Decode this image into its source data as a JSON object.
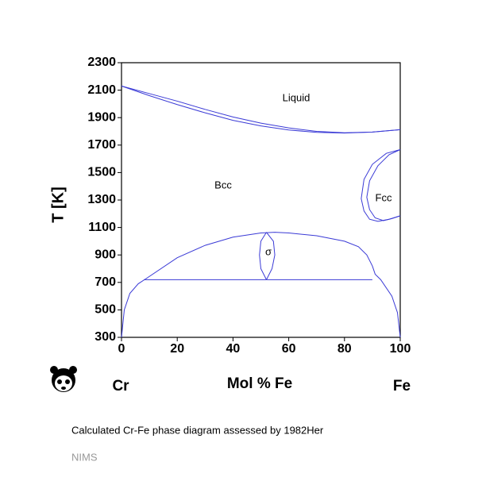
{
  "chart_data": {
    "type": "line",
    "xlabel": "Mol % Fe",
    "ylabel": "T [K]",
    "left_element": "Cr",
    "right_element": "Fe",
    "caption": "Calculated Cr-Fe phase diagram assessed by 1982Her",
    "source": "NIMS",
    "annotations": [
      "Liquid",
      "Bcc",
      "Fcc",
      "σ"
    ],
    "xlim": [
      0,
      100
    ],
    "xticks": [
      0,
      20,
      40,
      60,
      80,
      100
    ],
    "ylim": [
      300,
      2300
    ],
    "yticks": [
      300,
      500,
      700,
      900,
      1100,
      1300,
      1500,
      1700,
      1900,
      2100,
      2300
    ],
    "color": "#3a3ad6",
    "series": [
      {
        "x": [
          0,
          10,
          20,
          30,
          40,
          50,
          60,
          70,
          80,
          90,
          100
        ],
        "values": [
          2130,
          2075,
          2020,
          1960,
          1905,
          1860,
          1825,
          1800,
          1790,
          1795,
          1812
        ]
      },
      {
        "x": [
          0,
          10,
          20,
          30,
          40,
          50,
          60,
          70,
          80,
          90,
          100
        ],
        "values": [
          2130,
          2060,
          1995,
          1935,
          1880,
          1840,
          1810,
          1793,
          1788,
          1795,
          1812
        ]
      },
      {
        "x": [
          100,
          95,
          90,
          87,
          86,
          87,
          89,
          92,
          96,
          100
        ],
        "values": [
          1667,
          1640,
          1560,
          1450,
          1310,
          1220,
          1160,
          1145,
          1160,
          1185
        ]
      },
      {
        "x": [
          100,
          96,
          92,
          89,
          88,
          89,
          91,
          94,
          97,
          100
        ],
        "values": [
          1667,
          1630,
          1550,
          1440,
          1320,
          1230,
          1170,
          1150,
          1165,
          1185
        ]
      },
      {
        "x": [
          0,
          1,
          3,
          6,
          9,
          20,
          30,
          40,
          50,
          55,
          60,
          70,
          80,
          85,
          88,
          90,
          91,
          93,
          97,
          99,
          100
        ],
        "values": [
          300,
          500,
          620,
          690,
          730,
          880,
          970,
          1030,
          1060,
          1065,
          1060,
          1040,
          1000,
          960,
          900,
          820,
          760,
          720,
          600,
          480,
          300
        ]
      },
      {
        "x": [
          8,
          90
        ],
        "values": [
          720,
          720
        ]
      },
      {
        "x": [
          52,
          50,
          49.5,
          50,
          52
        ],
        "values": [
          1065,
          1000,
          900,
          800,
          720
        ]
      },
      {
        "x": [
          52,
          54.5,
          55,
          54,
          52
        ],
        "values": [
          1065,
          1000,
          900,
          800,
          720
        ]
      }
    ]
  }
}
